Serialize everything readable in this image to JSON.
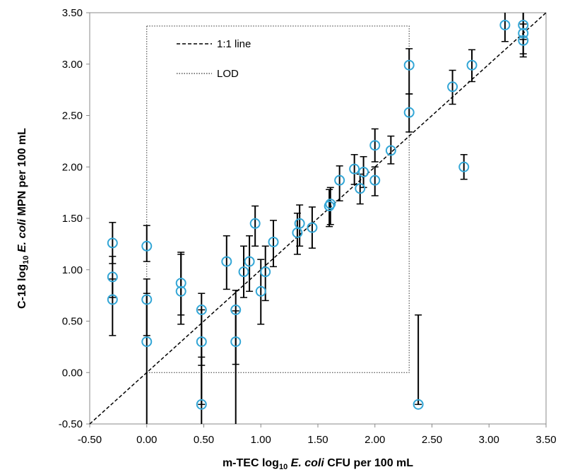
{
  "chart_data": {
    "type": "scatter",
    "title": "",
    "xlabel": {
      "prefix": "m-TEC log",
      "sub": "10",
      "italic": " E. coli",
      "suffix": " CFU per 100 mL"
    },
    "ylabel": {
      "prefix": "C-18  log",
      "sub": "10",
      "italic": " E. coli",
      "suffix": " MPN per 100 mL"
    },
    "xlim": [
      -0.5,
      3.5
    ],
    "ylim": [
      -0.5,
      3.5
    ],
    "x_ticks": [
      "-0.50",
      "0.00",
      "0.50",
      "1.00",
      "1.50",
      "2.00",
      "2.50",
      "3.00",
      "3.50"
    ],
    "y_ticks": [
      "-0.50",
      "0.00",
      "0.50",
      "1.00",
      "1.50",
      "2.00",
      "2.50",
      "3.00",
      "3.50"
    ],
    "grid": false,
    "legend": {
      "placement": "top-left",
      "entries": [
        {
          "label": "1:1 line",
          "style": "dashed"
        },
        {
          "label": "LOD",
          "style": "dotted"
        }
      ]
    },
    "reference_line": {
      "name": "1:1 line",
      "from": [
        -0.5,
        -0.5
      ],
      "to": [
        3.5,
        3.5
      ]
    },
    "lod_box": {
      "name": "LOD",
      "x": [
        0.0,
        2.3
      ],
      "y": [
        0.0,
        3.37
      ]
    },
    "marker_color": "#33a6d6",
    "points": [
      {
        "x": -0.3,
        "y": 1.26,
        "lo": 1.06,
        "hi": 1.46
      },
      {
        "x": -0.3,
        "y": 0.93,
        "lo": 0.73,
        "hi": 1.13
      },
      {
        "x": -0.3,
        "y": 0.71,
        "lo": 0.36,
        "hi": 0.91
      },
      {
        "x": 0.0,
        "y": 1.23,
        "lo": 1.08,
        "hi": 1.43
      },
      {
        "x": 0.0,
        "y": 0.71,
        "lo": 0.36,
        "hi": 0.91
      },
      {
        "x": 0.0,
        "y": 0.3,
        "lo": -0.5,
        "hi": 0.77
      },
      {
        "x": 0.3,
        "y": 0.87,
        "lo": 0.56,
        "hi": 1.15
      },
      {
        "x": 0.3,
        "y": 0.79,
        "lo": 0.47,
        "hi": 1.17
      },
      {
        "x": 0.48,
        "y": 0.61,
        "lo": 0.07,
        "hi": 0.77
      },
      {
        "x": 0.48,
        "y": 0.3,
        "lo": -0.5,
        "hi": 0.61
      },
      {
        "x": 0.48,
        "y": -0.31,
        "lo": -0.31,
        "hi": 0.15
      },
      {
        "x": 0.7,
        "y": 1.08,
        "lo": 0.81,
        "hi": 1.33
      },
      {
        "x": 0.78,
        "y": 0.61,
        "lo": 0.08,
        "hi": 0.8
      },
      {
        "x": 0.78,
        "y": 0.3,
        "lo": -0.5,
        "hi": 0.6
      },
      {
        "x": 0.85,
        "y": 0.98,
        "lo": 0.73,
        "hi": 1.23
      },
      {
        "x": 0.9,
        "y": 1.08,
        "lo": 0.79,
        "hi": 1.33
      },
      {
        "x": 0.95,
        "y": 1.45,
        "lo": 1.23,
        "hi": 1.62
      },
      {
        "x": 1.0,
        "y": 0.79,
        "lo": 0.47,
        "hi": 1.1
      },
      {
        "x": 1.04,
        "y": 0.98,
        "lo": 0.7,
        "hi": 1.23
      },
      {
        "x": 1.11,
        "y": 1.27,
        "lo": 1.03,
        "hi": 1.48
      },
      {
        "x": 1.32,
        "y": 1.36,
        "lo": 1.15,
        "hi": 1.55
      },
      {
        "x": 1.34,
        "y": 1.45,
        "lo": 1.23,
        "hi": 1.63
      },
      {
        "x": 1.45,
        "y": 1.41,
        "lo": 1.21,
        "hi": 1.61
      },
      {
        "x": 1.6,
        "y": 1.62,
        "lo": 1.42,
        "hi": 1.78
      },
      {
        "x": 1.61,
        "y": 1.64,
        "lo": 1.44,
        "hi": 1.8
      },
      {
        "x": 1.69,
        "y": 1.87,
        "lo": 1.67,
        "hi": 2.01
      },
      {
        "x": 1.82,
        "y": 1.98,
        "lo": 1.83,
        "hi": 2.12
      },
      {
        "x": 1.87,
        "y": 1.79,
        "lo": 1.64,
        "hi": 1.93
      },
      {
        "x": 1.9,
        "y": 1.95,
        "lo": 1.8,
        "hi": 2.1
      },
      {
        "x": 2.0,
        "y": 2.21,
        "lo": 2.05,
        "hi": 2.37
      },
      {
        "x": 2.0,
        "y": 1.87,
        "lo": 1.72,
        "hi": 2.0
      },
      {
        "x": 2.14,
        "y": 2.16,
        "lo": 2.03,
        "hi": 2.3
      },
      {
        "x": 2.3,
        "y": 2.99,
        "lo": 2.71,
        "hi": 3.15
      },
      {
        "x": 2.3,
        "y": 2.53,
        "lo": 2.34,
        "hi": 2.71
      },
      {
        "x": 2.38,
        "y": -0.31,
        "lo": -0.31,
        "hi": 0.56
      },
      {
        "x": 2.68,
        "y": 2.78,
        "lo": 2.61,
        "hi": 2.94
      },
      {
        "x": 2.78,
        "y": 2.0,
        "lo": 1.88,
        "hi": 2.12
      },
      {
        "x": 2.85,
        "y": 2.99,
        "lo": 2.83,
        "hi": 3.14
      },
      {
        "x": 3.14,
        "y": 3.38,
        "lo": 3.22,
        "hi": 3.5
      },
      {
        "x": 3.3,
        "y": 3.38,
        "lo": 3.24,
        "hi": 3.5
      },
      {
        "x": 3.3,
        "y": 3.3,
        "lo": 3.1,
        "hi": 3.5
      },
      {
        "x": 3.3,
        "y": 3.23,
        "lo": 3.07,
        "hi": 3.39
      }
    ]
  }
}
